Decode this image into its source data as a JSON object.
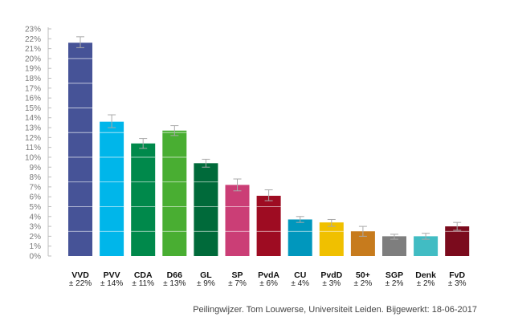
{
  "chart_data": {
    "type": "bar",
    "categories": [
      "VVD",
      "PVV",
      "CDA",
      "D66",
      "GL",
      "SP",
      "PvdA",
      "CU",
      "PvdD",
      "50+",
      "SGP",
      "Denk",
      "FvD"
    ],
    "values": [
      21.6,
      13.6,
      11.4,
      12.7,
      9.4,
      7.2,
      6.1,
      3.7,
      3.4,
      2.5,
      2.0,
      2.0,
      3.0
    ],
    "error_low": [
      21.1,
      13.0,
      10.9,
      12.2,
      9.0,
      6.6,
      5.6,
      3.4,
      3.0,
      2.0,
      1.7,
      1.7,
      2.6
    ],
    "error_high": [
      22.2,
      14.3,
      11.9,
      13.2,
      9.8,
      7.8,
      6.7,
      4.0,
      3.7,
      3.0,
      2.2,
      2.3,
      3.4
    ],
    "sub_labels": [
      "± 22%",
      "± 14%",
      "± 11%",
      "± 13%",
      "± 9%",
      "± 7%",
      "± 6%",
      "± 4%",
      "± 3%",
      "± 2%",
      "± 2%",
      "± 2%",
      "± 3%"
    ],
    "colors": [
      "#465397",
      "#00b6ea",
      "#00894b",
      "#49ae32",
      "#006a3a",
      "#cb3e76",
      "#9e0c22",
      "#0097bd",
      "#f0c000",
      "#c77b1d",
      "#7e7e7e",
      "#41bcc3",
      "#7b0b1d"
    ],
    "ylim": [
      0,
      23
    ],
    "y_ticks": [
      "0%",
      "1%",
      "2%",
      "3%",
      "4%",
      "5%",
      "6%",
      "7%",
      "8%",
      "9%",
      "10%",
      "11%",
      "12%",
      "13%",
      "14%",
      "15%",
      "16%",
      "17%",
      "18%",
      "19%",
      "20%",
      "21%",
      "22%",
      "23%"
    ],
    "grid": "horizontal white lines inside bars",
    "source": "Peilingwijzer. Tom Louwerse, Universiteit Leiden. Bijgewerkt: 18-06-2017"
  }
}
